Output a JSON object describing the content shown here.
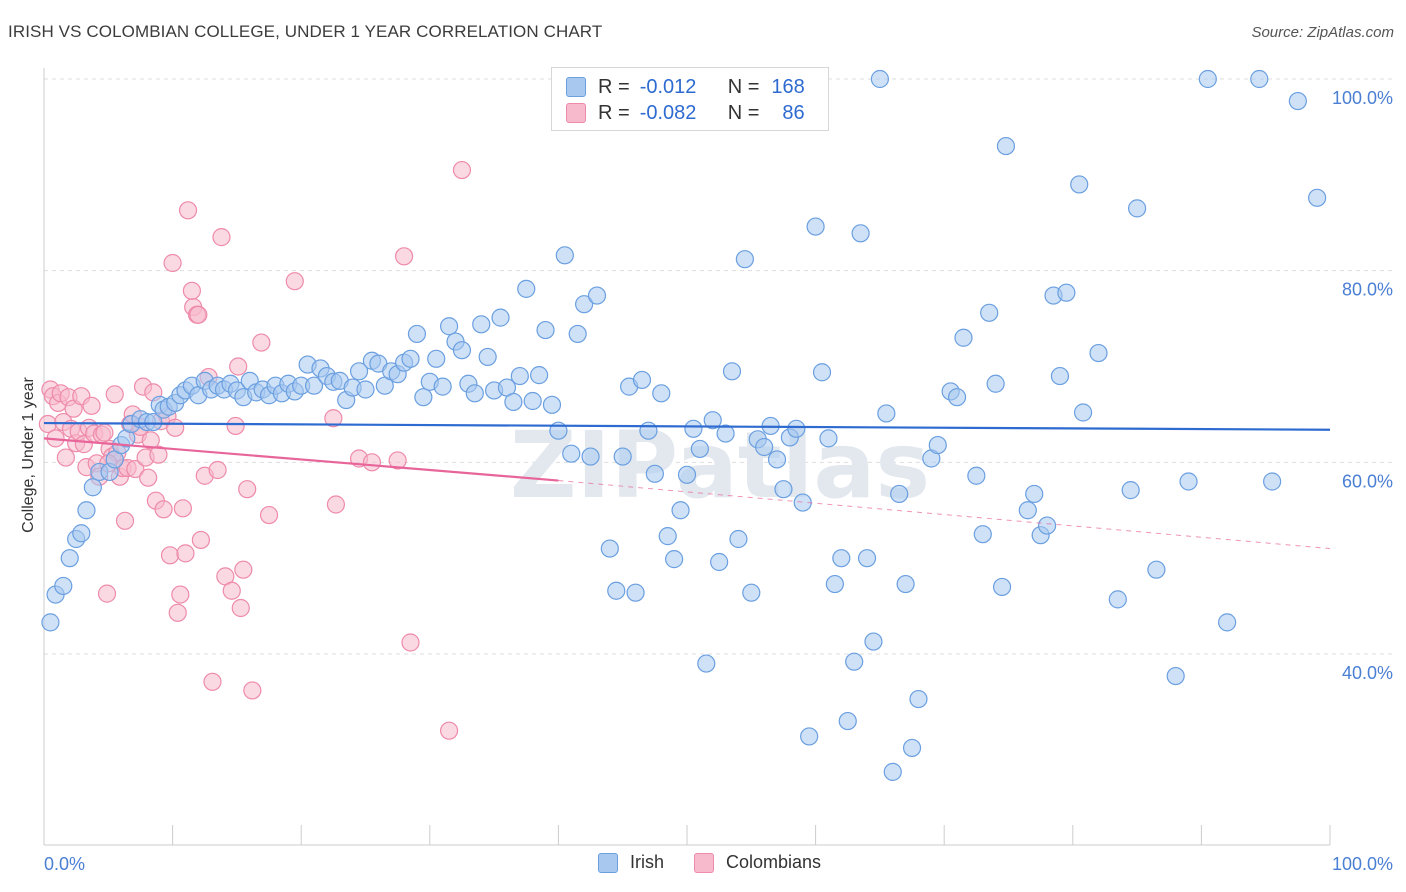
{
  "header": {
    "title": "IRISH VS COLOMBIAN COLLEGE, UNDER 1 YEAR CORRELATION CHART",
    "source": "Source: ZipAtlas.com"
  },
  "legend": {
    "irish": {
      "r_label": "R =",
      "r_value": "-0.012",
      "n_label": "N =",
      "n_value": "168"
    },
    "colombians": {
      "r_label": "R =",
      "r_value": "-0.082",
      "n_label": "N =",
      "n_value": "86"
    }
  },
  "bottom_legend": {
    "irish": "Irish",
    "colombians": "Colombians"
  },
  "colors": {
    "irish_fill": "#a8c8f0",
    "irish_stroke": "#6a9fe0",
    "irish_line": "#2e6bd0",
    "col_fill": "#f7b9cc",
    "col_stroke": "#ee8aaa",
    "col_line": "#e8659a",
    "grid": "#dddddd",
    "axis_text": "#4a7fd4"
  },
  "chart_data": {
    "type": "scatter",
    "title": "IRISH VS COLOMBIAN COLLEGE, UNDER 1 YEAR CORRELATION CHART",
    "xlabel": "",
    "ylabel": "College, Under 1 year",
    "xlim": [
      0,
      100
    ],
    "ylim": [
      20,
      102
    ],
    "x_tick_labels": [
      "0.0%",
      "100.0%"
    ],
    "y_ticks": [
      40,
      60,
      80,
      100
    ],
    "y_tick_labels": [
      "40.0%",
      "60.0%",
      "80.0%",
      "100.0%"
    ],
    "grid": "horizontal dashed",
    "legend_position": "top-center",
    "watermark": "ZIPatlas",
    "series": [
      {
        "name": "Irish",
        "trend": {
          "x": [
            0,
            100
          ],
          "y": [
            64.1,
            63.4
          ]
        },
        "points": [
          [
            0.5,
            43.3
          ],
          [
            0.9,
            46.2
          ],
          [
            1.5,
            47.1
          ],
          [
            2.0,
            50.0
          ],
          [
            2.5,
            52.0
          ],
          [
            2.9,
            52.6
          ],
          [
            3.3,
            55.0
          ],
          [
            3.8,
            57.4
          ],
          [
            4.3,
            59.0
          ],
          [
            5.1,
            59.0
          ],
          [
            5.5,
            60.3
          ],
          [
            6.0,
            61.8
          ],
          [
            6.4,
            62.5
          ],
          [
            6.8,
            64.0
          ],
          [
            7.5,
            64.5
          ],
          [
            8.0,
            64.2
          ],
          [
            8.5,
            64.2
          ],
          [
            9.0,
            66.0
          ],
          [
            9.3,
            65.5
          ],
          [
            9.7,
            65.8
          ],
          [
            10.2,
            66.2
          ],
          [
            10.6,
            67.0
          ],
          [
            11.0,
            67.5
          ],
          [
            11.5,
            68.0
          ],
          [
            12.0,
            67.0
          ],
          [
            12.5,
            68.5
          ],
          [
            13.0,
            67.6
          ],
          [
            13.5,
            68.0
          ],
          [
            14.0,
            67.6
          ],
          [
            14.5,
            68.2
          ],
          [
            15.0,
            67.5
          ],
          [
            15.5,
            66.8
          ],
          [
            16.0,
            68.5
          ],
          [
            16.5,
            67.3
          ],
          [
            17.0,
            67.6
          ],
          [
            17.5,
            67.0
          ],
          [
            18.0,
            68.0
          ],
          [
            18.5,
            67.2
          ],
          [
            19.0,
            68.2
          ],
          [
            19.5,
            67.4
          ],
          [
            20.0,
            68.0
          ],
          [
            20.5,
            70.2
          ],
          [
            21.0,
            68.0
          ],
          [
            21.5,
            69.8
          ],
          [
            22.0,
            69.0
          ],
          [
            22.5,
            68.4
          ],
          [
            23.0,
            68.5
          ],
          [
            23.5,
            66.5
          ],
          [
            24.0,
            67.8
          ],
          [
            24.5,
            69.5
          ],
          [
            25.0,
            67.6
          ],
          [
            25.5,
            70.6
          ],
          [
            26.0,
            70.3
          ],
          [
            26.5,
            68.0
          ],
          [
            27.0,
            69.5
          ],
          [
            27.5,
            69.2
          ],
          [
            28.0,
            70.4
          ],
          [
            28.5,
            70.8
          ],
          [
            29.0,
            73.4
          ],
          [
            29.5,
            66.8
          ],
          [
            30.0,
            68.4
          ],
          [
            30.5,
            70.8
          ],
          [
            31.0,
            67.9
          ],
          [
            31.5,
            74.2
          ],
          [
            32.0,
            72.6
          ],
          [
            32.5,
            71.7
          ],
          [
            33.0,
            68.2
          ],
          [
            33.5,
            67.2
          ],
          [
            34.0,
            74.4
          ],
          [
            34.5,
            71.0
          ],
          [
            35.0,
            67.5
          ],
          [
            35.5,
            75.1
          ],
          [
            36.0,
            67.8
          ],
          [
            36.5,
            66.3
          ],
          [
            37.0,
            69.0
          ],
          [
            37.5,
            78.1
          ],
          [
            38.0,
            66.4
          ],
          [
            38.5,
            69.1
          ],
          [
            39.0,
            73.8
          ],
          [
            39.5,
            66.0
          ],
          [
            40.0,
            63.3
          ],
          [
            40.5,
            81.6
          ],
          [
            41.0,
            60.9
          ],
          [
            41.5,
            73.4
          ],
          [
            42.0,
            76.5
          ],
          [
            42.5,
            60.6
          ],
          [
            43.0,
            77.4
          ],
          [
            44.0,
            51.0
          ],
          [
            44.5,
            46.6
          ],
          [
            45.0,
            60.6
          ],
          [
            45.5,
            67.9
          ],
          [
            46.0,
            46.4
          ],
          [
            46.5,
            68.6
          ],
          [
            47.0,
            63.3
          ],
          [
            47.5,
            58.8
          ],
          [
            48.0,
            67.2
          ],
          [
            48.5,
            52.3
          ],
          [
            49.0,
            49.9
          ],
          [
            49.5,
            55.0
          ],
          [
            50.0,
            58.7
          ],
          [
            50.5,
            63.5
          ],
          [
            51.0,
            61.4
          ],
          [
            51.5,
            39.0
          ],
          [
            52.0,
            64.4
          ],
          [
            52.5,
            49.6
          ],
          [
            53.0,
            63.0
          ],
          [
            53.5,
            69.5
          ],
          [
            54.0,
            52.0
          ],
          [
            54.5,
            81.2
          ],
          [
            55.0,
            46.4
          ],
          [
            55.5,
            62.4
          ],
          [
            56.0,
            61.6
          ],
          [
            56.5,
            63.8
          ],
          [
            57.0,
            60.3
          ],
          [
            57.5,
            57.2
          ],
          [
            58.0,
            62.6
          ],
          [
            58.5,
            63.5
          ],
          [
            59.0,
            55.8
          ],
          [
            59.5,
            31.4
          ],
          [
            60.0,
            84.6
          ],
          [
            60.5,
            69.4
          ],
          [
            61.0,
            62.5
          ],
          [
            61.5,
            47.3
          ],
          [
            62.0,
            50.0
          ],
          [
            62.5,
            33.0
          ],
          [
            63.0,
            39.2
          ],
          [
            63.5,
            83.9
          ],
          [
            64.0,
            50.0
          ],
          [
            64.5,
            41.3
          ],
          [
            65.0,
            100.0
          ],
          [
            65.5,
            65.1
          ],
          [
            66.0,
            27.7
          ],
          [
            66.5,
            56.7
          ],
          [
            67.0,
            47.3
          ],
          [
            67.5,
            30.2
          ],
          [
            68.0,
            35.3
          ],
          [
            69.0,
            60.4
          ],
          [
            69.5,
            61.8
          ],
          [
            70.5,
            67.4
          ],
          [
            71.0,
            66.8
          ],
          [
            71.5,
            73.0
          ],
          [
            72.5,
            58.6
          ],
          [
            73.0,
            52.5
          ],
          [
            73.5,
            75.6
          ],
          [
            74.0,
            68.2
          ],
          [
            74.5,
            47.0
          ],
          [
            74.8,
            93.0
          ],
          [
            76.5,
            55.0
          ],
          [
            77.0,
            56.7
          ],
          [
            77.5,
            52.4
          ],
          [
            78.0,
            53.4
          ],
          [
            78.5,
            77.4
          ],
          [
            79.0,
            69.0
          ],
          [
            79.5,
            77.7
          ],
          [
            80.5,
            89.0
          ],
          [
            80.8,
            65.2
          ],
          [
            82.0,
            71.4
          ],
          [
            83.5,
            45.7
          ],
          [
            84.5,
            57.1
          ],
          [
            85.0,
            86.5
          ],
          [
            86.5,
            48.8
          ],
          [
            88.0,
            37.7
          ],
          [
            89.0,
            58.0
          ],
          [
            90.5,
            100.0
          ],
          [
            92.0,
            43.3
          ],
          [
            94.5,
            100.0
          ],
          [
            95.5,
            58.0
          ],
          [
            97.5,
            97.7
          ],
          [
            99.0,
            87.6
          ]
        ]
      },
      {
        "name": "Colombians",
        "trend": {
          "x": [
            0,
            40
          ],
          "y": [
            62.5,
            58.1
          ]
        },
        "trend_dashed": {
          "x": [
            40,
            100
          ],
          "y": [
            58.1,
            51.0
          ]
        },
        "points": [
          [
            0.3,
            64.0
          ],
          [
            0.5,
            67.6
          ],
          [
            0.7,
            66.9
          ],
          [
            0.9,
            62.5
          ],
          [
            1.1,
            66.2
          ],
          [
            1.3,
            67.2
          ],
          [
            1.5,
            64.2
          ],
          [
            1.7,
            60.5
          ],
          [
            1.9,
            66.8
          ],
          [
            2.1,
            63.5
          ],
          [
            2.3,
            65.6
          ],
          [
            2.5,
            62.0
          ],
          [
            2.7,
            63.2
          ],
          [
            2.9,
            66.9
          ],
          [
            3.1,
            61.9
          ],
          [
            3.3,
            59.5
          ],
          [
            3.5,
            63.6
          ],
          [
            3.7,
            65.9
          ],
          [
            3.9,
            63.0
          ],
          [
            4.1,
            59.9
          ],
          [
            4.3,
            58.5
          ],
          [
            4.5,
            62.9
          ],
          [
            4.7,
            63.1
          ],
          [
            4.9,
            46.3
          ],
          [
            5.1,
            61.4
          ],
          [
            5.3,
            60.6
          ],
          [
            5.5,
            67.1
          ],
          [
            5.7,
            61.0
          ],
          [
            5.9,
            58.5
          ],
          [
            6.1,
            59.4
          ],
          [
            6.3,
            53.9
          ],
          [
            6.5,
            59.4
          ],
          [
            6.7,
            64.0
          ],
          [
            6.9,
            65.0
          ],
          [
            7.1,
            59.3
          ],
          [
            7.3,
            62.9
          ],
          [
            7.5,
            63.7
          ],
          [
            7.7,
            67.9
          ],
          [
            7.9,
            60.5
          ],
          [
            8.1,
            58.4
          ],
          [
            8.3,
            62.3
          ],
          [
            8.5,
            67.3
          ],
          [
            8.7,
            56.0
          ],
          [
            8.9,
            60.8
          ],
          [
            9.1,
            64.3
          ],
          [
            9.3,
            55.1
          ],
          [
            9.6,
            64.8
          ],
          [
            9.8,
            50.3
          ],
          [
            10.0,
            80.8
          ],
          [
            10.2,
            63.6
          ],
          [
            10.4,
            44.3
          ],
          [
            10.6,
            46.2
          ],
          [
            10.8,
            55.2
          ],
          [
            11.0,
            50.5
          ],
          [
            11.2,
            86.3
          ],
          [
            11.6,
            76.2
          ],
          [
            11.9,
            75.4
          ],
          [
            12.2,
            51.9
          ],
          [
            12.5,
            58.6
          ],
          [
            12.8,
            68.9
          ],
          [
            13.1,
            37.1
          ],
          [
            13.5,
            59.2
          ],
          [
            13.8,
            83.5
          ],
          [
            14.1,
            48.1
          ],
          [
            14.6,
            46.6
          ],
          [
            14.9,
            63.8
          ],
          [
            15.1,
            70.0
          ],
          [
            15.3,
            44.8
          ],
          [
            15.5,
            48.8
          ],
          [
            15.8,
            57.2
          ],
          [
            16.2,
            36.2
          ],
          [
            16.9,
            72.5
          ],
          [
            17.5,
            54.5
          ],
          [
            19.5,
            78.9
          ],
          [
            22.5,
            64.6
          ],
          [
            22.7,
            55.6
          ],
          [
            24.5,
            60.4
          ],
          [
            25.5,
            60.0
          ],
          [
            27.5,
            60.2
          ],
          [
            28.0,
            81.5
          ],
          [
            28.5,
            41.2
          ],
          [
            31.5,
            32.0
          ],
          [
            32.5,
            90.5
          ],
          [
            5.0,
            59.9
          ],
          [
            11.5,
            77.9
          ],
          [
            12.0,
            75.4
          ]
        ]
      }
    ]
  }
}
